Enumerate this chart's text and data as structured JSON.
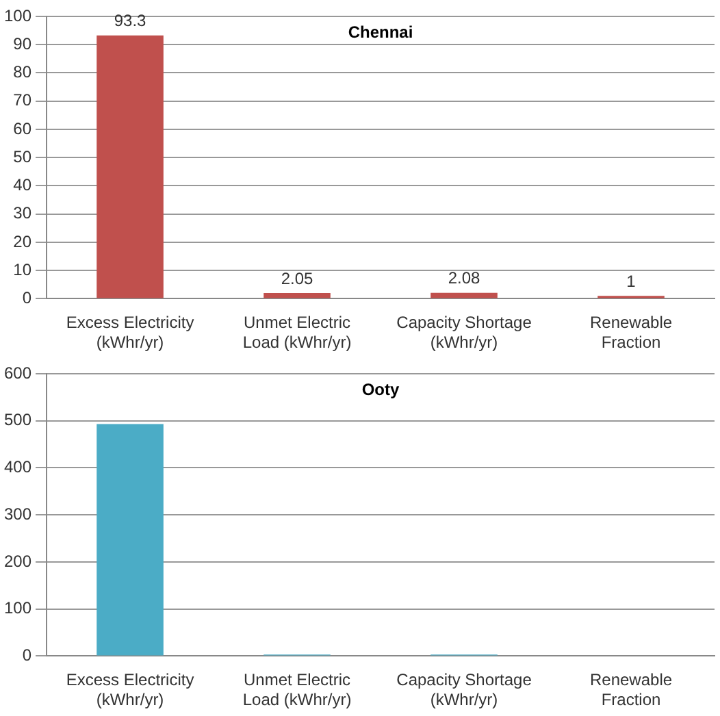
{
  "chart_data": [
    {
      "type": "bar",
      "title": "Chennai",
      "categories": [
        "Excess Electricity (kWhr/yr)",
        "Unmet Electric Load (kWhr/yr)",
        "Capacity Shortage (kWhr/yr)",
        "Renewable Fraction"
      ],
      "values": [
        93.3,
        2.05,
        2.08,
        1
      ],
      "color": "#c0504d",
      "ylim": [
        0,
        100
      ],
      "yticks": [
        0,
        10,
        20,
        30,
        40,
        50,
        60,
        70,
        80,
        90,
        100
      ],
      "grid": "y",
      "data_labels": true,
      "legend": false
    },
    {
      "type": "bar",
      "title": "Ooty",
      "categories": [
        "Excess Electricity (kWhr/yr)",
        "Unmet Electric Load (kWhr/yr)",
        "Capacity Shortage (kWhr/yr)",
        "Renewable Fraction"
      ],
      "values": [
        493,
        3,
        3,
        0
      ],
      "color": "#4bacc6",
      "ylim": [
        0,
        600
      ],
      "yticks": [
        0,
        100,
        200,
        300,
        400,
        500,
        600
      ],
      "grid": "y",
      "legend": false
    }
  ]
}
